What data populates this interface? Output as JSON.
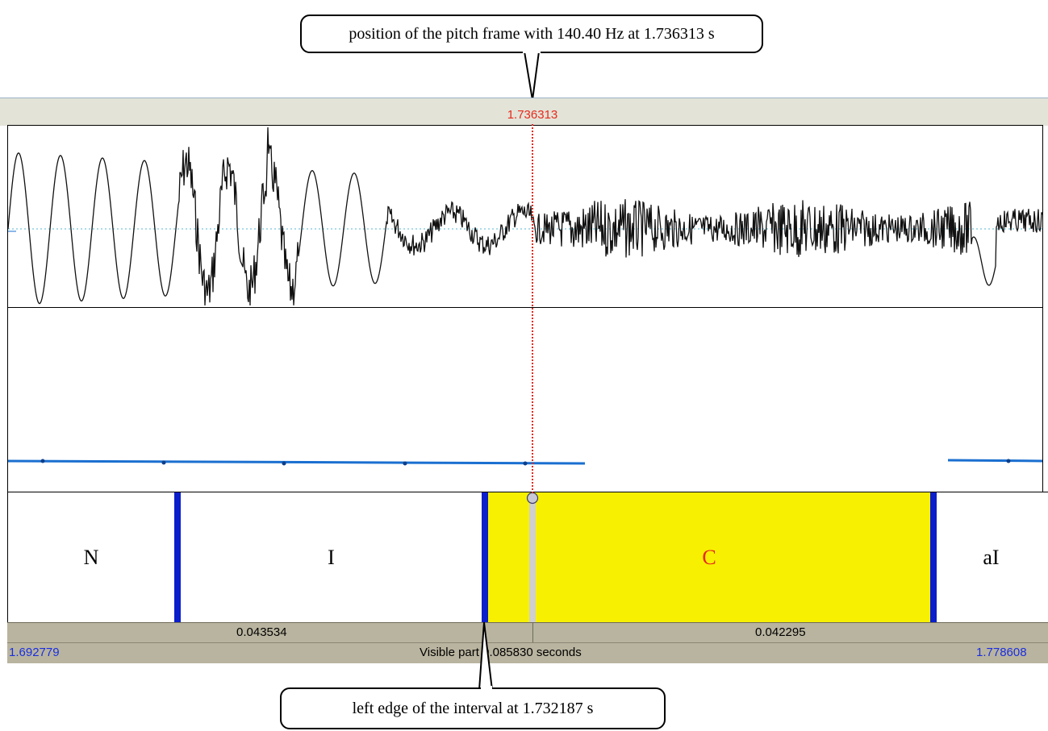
{
  "callouts": {
    "top": "position of the pitch frame with 140.40 Hz at 1.736313 s",
    "bottom": "left edge of the interval at 1.732187 s"
  },
  "cursor": {
    "time": "1.736313"
  },
  "tier": {
    "intervals": [
      {
        "label": "N",
        "selected": false
      },
      {
        "label": "I",
        "selected": false
      },
      {
        "label": "C",
        "selected": true
      },
      {
        "label": "aI",
        "selected": false
      }
    ]
  },
  "durations": {
    "left": "0.043534",
    "right": "0.042295"
  },
  "visible": {
    "start": "1.692779",
    "label": "Visible part 0.085830 seconds",
    "end": "1.778608"
  },
  "colors": {
    "cursor": "#e8291c",
    "boundary": "#0a1ec9",
    "selection": "#f7f000",
    "pitch": "#1a6fd0",
    "time_blue": "#1a2ee0"
  }
}
